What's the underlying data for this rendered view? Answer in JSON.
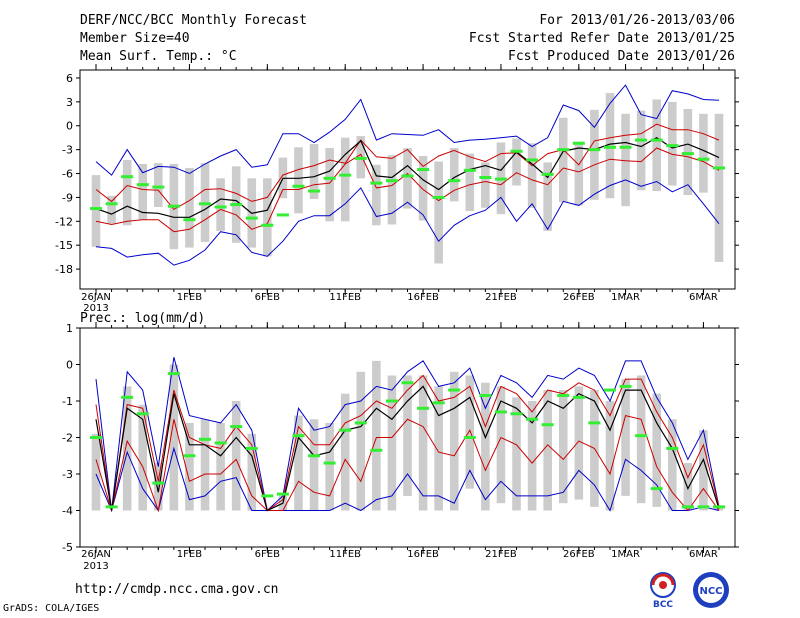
{
  "header": {
    "title": "DERF/NCC/BCC Monthly Forecast",
    "member_size": "Member Size=40",
    "variable1": "Mean Surf. Temp.: °C",
    "forecast_range": "For 2013/01/26-2013/03/06",
    "started": "Fcst Started Refer Date 2013/01/25",
    "produced": "Fcst Produced Date 2013/01/26"
  },
  "footer": {
    "url": "http://cmdp.ncc.cma.gov.cn",
    "grads": "GrADS: COLA/IGES",
    "logo1_text": "BCC",
    "logo2_text": "NCC"
  },
  "colors": {
    "mean": "#000000",
    "quantile": "#cc0000",
    "extreme": "#0000cc",
    "box": "#cccccc",
    "median": "#33ee33",
    "grid": "#000000"
  },
  "chart_data": [
    {
      "type": "box-ensemble",
      "title": "Mean Surf. Temp.: °C",
      "ylabel": "°C",
      "ylim": [
        -20.5,
        7
      ],
      "yticks": [
        6,
        3,
        0,
        -3,
        -6,
        -9,
        -12,
        -15,
        -18
      ],
      "xticks": [
        {
          "day": 0,
          "label": "26JAN",
          "sub": "2013"
        },
        {
          "day": 6,
          "label": "1FEB"
        },
        {
          "day": 11,
          "label": "6FEB"
        },
        {
          "day": 16,
          "label": "11FEB"
        },
        {
          "day": 21,
          "label": "16FEB"
        },
        {
          "day": 26,
          "label": "21FEB"
        },
        {
          "day": 31,
          "label": "26FEB"
        },
        {
          "day": 34,
          "label": "1MAR"
        },
        {
          "day": 39,
          "label": "6MAR"
        }
      ],
      "max": [
        -4.5,
        -6.2,
        -3.0,
        -5.9,
        -5.1,
        -5.2,
        -6.0,
        -4.8,
        -3.8,
        -3.0,
        -5.2,
        -4.9,
        -1.0,
        -1.0,
        -2.1,
        -0.8,
        0.8,
        3.3,
        -1.8,
        -1.0,
        -1.1,
        -1.2,
        -0.5,
        -2.1,
        -1.8,
        -1.7,
        -1.5,
        -1.3,
        -2.6,
        -1.5,
        2.6,
        1.9,
        -0.2,
        2.8,
        5.1,
        1.4,
        0.9,
        4.4,
        4.0,
        3.3,
        3.2
      ],
      "q_upper": [
        -8.0,
        -9.5,
        -7.5,
        -8.0,
        -8.1,
        -10.5,
        -9.4,
        -8.0,
        -7.9,
        -8.5,
        -9.5,
        -9.0,
        -6.2,
        -5.5,
        -5.0,
        -4.3,
        -4.7,
        -1.8,
        -3.9,
        -4.1,
        -3.0,
        -5.1,
        -3.8,
        -3.1,
        -3.9,
        -4.5,
        -3.5,
        -3.4,
        -5.0,
        -3.5,
        -3.0,
        -4.9,
        -1.9,
        -1.5,
        -1.2,
        -1.0,
        0.2,
        -0.5,
        -0.5,
        -1.0,
        -1.8
      ],
      "mean": [
        -10.4,
        -11.1,
        -10.1,
        -10.9,
        -11.0,
        -11.5,
        -11.5,
        -10.5,
        -9.2,
        -9.4,
        -11.0,
        -10.6,
        -6.6,
        -6.6,
        -6.4,
        -5.7,
        -3.6,
        -1.9,
        -6.3,
        -6.5,
        -5.0,
        -6.8,
        -8.0,
        -6.5,
        -5.5,
        -5.0,
        -5.6,
        -3.3,
        -4.8,
        -6.5,
        -3.2,
        -2.8,
        -3.0,
        -2.3,
        -2.1,
        -2.6,
        -1.5,
        -2.8,
        -2.3,
        -3.1,
        -4.0
      ],
      "q_lower": [
        -12.0,
        -12.4,
        -12.0,
        -11.8,
        -11.8,
        -13.3,
        -13.0,
        -11.8,
        -10.5,
        -11.2,
        -13.0,
        -12.3,
        -8.0,
        -8.0,
        -7.4,
        -7.2,
        -4.8,
        -3.6,
        -7.8,
        -7.5,
        -6.0,
        -8.0,
        -9.4,
        -8.1,
        -7.4,
        -7.0,
        -7.4,
        -5.9,
        -6.8,
        -7.4,
        -5.3,
        -5.8,
        -4.9,
        -4.2,
        -4.4,
        -4.5,
        -2.8,
        -3.6,
        -3.9,
        -4.5,
        -5.6
      ],
      "min": [
        -15.2,
        -15.4,
        -16.5,
        -16.2,
        -16.0,
        -17.5,
        -16.9,
        -15.6,
        -13.3,
        -13.7,
        -15.9,
        -16.4,
        -14.5,
        -12.0,
        -11.3,
        -11.3,
        -9.8,
        -7.8,
        -11.4,
        -11.0,
        -9.6,
        -11.2,
        -14.5,
        -12.5,
        -11.3,
        -10.6,
        -9.0,
        -12.0,
        -9.8,
        -13.0,
        -9.5,
        -10.0,
        -8.6,
        -7.5,
        -6.8,
        -7.6,
        -7.0,
        -8.3,
        -7.4,
        -9.8,
        -12.3
      ],
      "box_top": [
        -6.2,
        -8.8,
        -4.3,
        -4.8,
        -4.7,
        -4.8,
        -5.3,
        -4.7,
        -6.6,
        -5.1,
        -6.6,
        -6.6,
        -4.0,
        -2.7,
        -2.3,
        -2.8,
        -1.5,
        -1.3,
        -4.9,
        -3.7,
        -2.8,
        -3.8,
        -4.5,
        -2.8,
        -3.5,
        -4.6,
        -2.1,
        -1.6,
        -2.2,
        -4.6,
        1.0,
        -2.0,
        2.0,
        4.1,
        1.5,
        1.9,
        3.3,
        3.0,
        2.1,
        1.5,
        1.5
      ],
      "box_bot": [
        -15.2,
        -12.3,
        -12.5,
        -11.8,
        -10.2,
        -15.5,
        -15.3,
        -14.6,
        -13.2,
        -14.7,
        -15.3,
        -16.4,
        -9.1,
        -11.0,
        -9.2,
        -12.0,
        -12.0,
        -6.6,
        -12.5,
        -12.4,
        -10.4,
        -11.9,
        -17.3,
        -9.5,
        -10.7,
        -10.3,
        -11.1,
        -7.5,
        -10.3,
        -13.2,
        -9.6,
        -10.0,
        -9.3,
        -9.1,
        -10.1,
        -8.1,
        -8.2,
        -7.5,
        -8.7,
        -8.4,
        -17.1
      ],
      "median": [
        -10.4,
        -9.8,
        -6.4,
        -7.4,
        -7.7,
        -10.1,
        -11.8,
        -9.8,
        -10.2,
        -9.9,
        -11.6,
        -12.5,
        -11.2,
        -7.6,
        -8.2,
        -6.6,
        -6.2,
        -4.1,
        -7.2,
        -6.9,
        -6.3,
        -5.5,
        -9.0,
        -6.9,
        -5.6,
        -6.5,
        -6.7,
        -3.2,
        -4.3,
        -6.1,
        -3.0,
        -2.2,
        -3.0,
        -2.7,
        -2.7,
        -1.8,
        -1.8,
        -2.5,
        -3.5,
        -4.2,
        -5.3
      ]
    },
    {
      "type": "box-ensemble",
      "title": "Prec.: log(mm/d)",
      "ylabel": "log(mm/d)",
      "ylim": [
        -5,
        1
      ],
      "yticks": [
        1,
        0,
        -1,
        -2,
        -3,
        -4,
        -5
      ],
      "xticks": [
        {
          "day": 0,
          "label": "26JAN",
          "sub": "2013"
        },
        {
          "day": 6,
          "label": "1FEB"
        },
        {
          "day": 11,
          "label": "6FEB"
        },
        {
          "day": 16,
          "label": "11FEB"
        },
        {
          "day": 21,
          "label": "16FEB"
        },
        {
          "day": 26,
          "label": "21FEB"
        },
        {
          "day": 31,
          "label": "26FEB"
        },
        {
          "day": 34,
          "label": "1MAR"
        },
        {
          "day": 39,
          "label": "6MAR"
        }
      ],
      "max": [
        -0.4,
        -4.0,
        -0.2,
        -0.7,
        -2.8,
        0.2,
        -1.4,
        -1.5,
        -1.6,
        -1.1,
        -1.8,
        -4.0,
        -3.6,
        -1.2,
        -1.8,
        -1.7,
        -1.1,
        -1.0,
        -0.6,
        -0.7,
        -0.2,
        0.1,
        -0.6,
        -0.5,
        -0.1,
        -1.2,
        -0.3,
        -0.5,
        -0.9,
        -0.3,
        -0.4,
        -0.1,
        -0.3,
        -1.0,
        0.1,
        0.1,
        -0.9,
        -1.6,
        -2.6,
        -1.8,
        -3.9
      ],
      "q_upper": [
        -1.1,
        -4.0,
        -1.1,
        -1.2,
        -3.2,
        -0.7,
        -2.0,
        -2.2,
        -2.3,
        -1.7,
        -2.2,
        -4.0,
        -3.7,
        -1.7,
        -2.2,
        -2.2,
        -1.6,
        -1.4,
        -1.0,
        -1.2,
        -0.7,
        -0.3,
        -1.0,
        -0.9,
        -0.6,
        -1.7,
        -0.6,
        -0.8,
        -1.3,
        -0.7,
        -0.8,
        -0.5,
        -0.7,
        -1.4,
        -0.4,
        -0.4,
        -1.3,
        -2.0,
        -3.1,
        -2.2,
        -3.9
      ],
      "mean": [
        -1.5,
        -4.0,
        -1.2,
        -1.5,
        -3.5,
        -0.8,
        -2.2,
        -2.2,
        -2.5,
        -2.0,
        -2.5,
        -4.0,
        -3.8,
        -2.0,
        -2.5,
        -2.4,
        -1.8,
        -1.7,
        -1.2,
        -1.5,
        -1.0,
        -0.6,
        -1.4,
        -1.2,
        -0.9,
        -2.0,
        -1.0,
        -1.2,
        -1.6,
        -1.0,
        -1.2,
        -0.8,
        -1.0,
        -1.8,
        -0.7,
        -0.7,
        -1.6,
        -2.3,
        -3.4,
        -2.6,
        -3.95
      ],
      "q_lower": [
        -2.6,
        -4.0,
        -2.1,
        -2.8,
        -4.0,
        -1.5,
        -3.2,
        -3.0,
        -3.0,
        -2.6,
        -3.6,
        -4.0,
        -4.0,
        -3.2,
        -3.5,
        -3.6,
        -2.6,
        -3.2,
        -2.0,
        -2.0,
        -1.5,
        -1.7,
        -2.4,
        -2.5,
        -1.8,
        -2.9,
        -2.0,
        -2.2,
        -2.7,
        -2.2,
        -2.6,
        -2.1,
        -2.3,
        -3.0,
        -1.4,
        -1.5,
        -2.8,
        -3.5,
        -4.0,
        -3.4,
        -4.0
      ],
      "min": [
        -3.0,
        -4.0,
        -2.4,
        -3.4,
        -4.0,
        -2.3,
        -3.7,
        -3.6,
        -3.2,
        -3.1,
        -4.0,
        -4.0,
        -4.0,
        -4.0,
        -4.0,
        -4.0,
        -3.8,
        -4.0,
        -3.7,
        -3.6,
        -3.0,
        -3.6,
        -3.6,
        -3.8,
        -2.9,
        -3.7,
        -3.2,
        -3.6,
        -3.6,
        -3.6,
        -3.5,
        -2.9,
        -3.3,
        -4.0,
        -2.6,
        -2.9,
        -3.3,
        -4.0,
        -4.0,
        -3.9,
        -4.0
      ],
      "box_top": [
        -1.9,
        -4.0,
        -0.6,
        -1.1,
        -2.7,
        0.0,
        -1.6,
        -1.5,
        -1.6,
        -1.0,
        -1.9,
        -4.0,
        -3.6,
        -1.4,
        -1.5,
        -1.6,
        -0.8,
        -0.2,
        0.1,
        -0.3,
        -0.3,
        -0.3,
        -0.6,
        -0.2,
        -0.3,
        -0.5,
        -0.6,
        -0.9,
        -1.0,
        -0.7,
        -0.7,
        -0.6,
        -0.7,
        -1.0,
        -0.4,
        -0.3,
        -0.8,
        -1.5,
        -2.7,
        -1.8,
        -3.9
      ],
      "box_bot": [
        -4.0,
        -4.0,
        -4.0,
        -4.0,
        -4.0,
        -4.0,
        -4.0,
        -4.0,
        -4.0,
        -4.0,
        -4.0,
        -4.0,
        -4.0,
        -4.0,
        -4.0,
        -4.0,
        -4.0,
        -4.0,
        -4.0,
        -4.0,
        -3.6,
        -4.0,
        -4.0,
        -4.0,
        -3.4,
        -4.0,
        -3.8,
        -4.0,
        -4.0,
        -4.0,
        -3.8,
        -3.7,
        -3.9,
        -4.0,
        -3.6,
        -3.8,
        -3.9,
        -4.0,
        -4.0,
        -4.0,
        -4.0
      ],
      "median": [
        -2.0,
        -3.9,
        -0.9,
        -1.35,
        -3.25,
        -0.25,
        -2.5,
        -2.05,
        -2.15,
        -1.7,
        -2.3,
        -3.6,
        -3.55,
        -1.95,
        -2.5,
        -2.7,
        -1.8,
        -1.6,
        -2.35,
        -1.0,
        -0.5,
        -1.2,
        -1.05,
        -0.7,
        -2.0,
        -0.85,
        -1.3,
        -1.35,
        -1.5,
        -1.65,
        -0.85,
        -0.9,
        -1.6,
        -0.7,
        -0.6,
        -1.95,
        -3.4,
        -2.3,
        -3.9,
        -3.9,
        -3.9
      ]
    }
  ]
}
